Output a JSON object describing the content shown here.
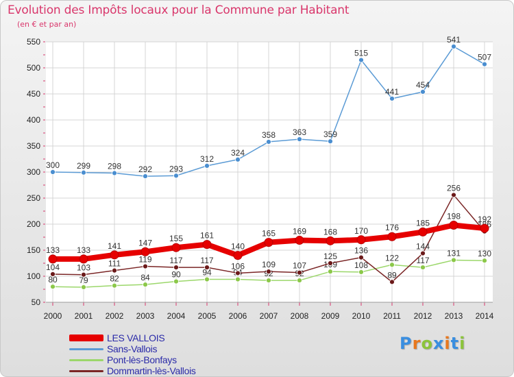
{
  "header": {
    "title": "Evolution des Impôts locaux pour la Commune par Habitant",
    "subtitle": "(en € et par an)"
  },
  "brand": {
    "letters": [
      "P",
      "r",
      "o",
      "x",
      "i",
      "t",
      "i"
    ],
    "colors": [
      "#3a8ee0",
      "#e8781e",
      "#8cc43c",
      "#3a8ee0",
      "#e8781e",
      "#3a8ee0",
      "#8cc43c"
    ]
  },
  "chart_data": {
    "type": "line",
    "title": "Evolution des Impôts locaux pour la Commune par Habitant",
    "subtitle": "(en € et par an)",
    "xlabel": "",
    "ylabel": "",
    "x": [
      "2000",
      "2001",
      "2002",
      "2003",
      "2004",
      "2005",
      "2006",
      "2007",
      "2008",
      "2009",
      "2010",
      "2011",
      "2012",
      "2013",
      "2014"
    ],
    "ylim": [
      50,
      550
    ],
    "yticks": [
      50,
      100,
      150,
      200,
      250,
      300,
      350,
      400,
      450,
      500,
      550
    ],
    "grid": true,
    "legend_position": "bottom-left",
    "series": [
      {
        "name": "LES VALLOIS",
        "color": "#e60000",
        "values": [
          133,
          133,
          141,
          147,
          155,
          161,
          140,
          165,
          169,
          168,
          170,
          176,
          185,
          198,
          192
        ]
      },
      {
        "name": "Sans-Vallois",
        "color": "#5b9bd5",
        "values": [
          300,
          299,
          298,
          292,
          293,
          312,
          324,
          358,
          363,
          359,
          515,
          441,
          454,
          541,
          507
        ]
      },
      {
        "name": "Pont-lès-Bonfays",
        "color": "#9bd76a",
        "values": [
          80,
          79,
          82,
          84,
          90,
          94,
          94,
          92,
          92,
          109,
          108,
          122,
          117,
          131,
          130
        ]
      },
      {
        "name": "Dommartin-lès-Vallois",
        "color": "#7a2525",
        "values": [
          104,
          103,
          111,
          119,
          117,
          117,
          106,
          109,
          107,
          125,
          136,
          89,
          144,
          256,
          186
        ]
      }
    ]
  }
}
